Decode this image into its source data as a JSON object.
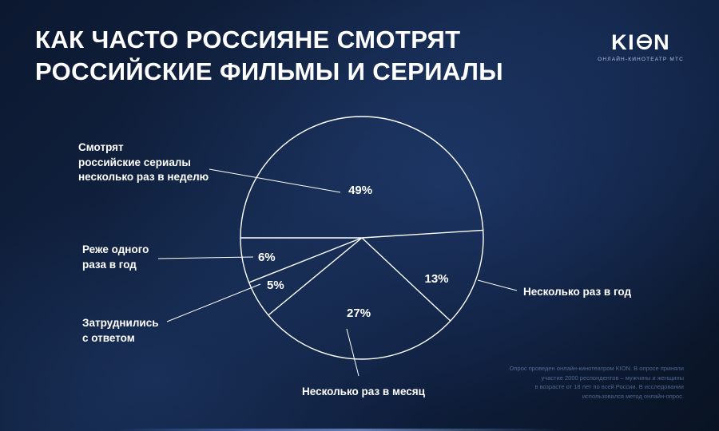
{
  "title": "КАК ЧАСТО РОССИЯНЕ СМОТРЯТ\nРОССИЙСКИЕ ФИЛЬМЫ И СЕРИАЛЫ",
  "logo": {
    "brand_full": "KION",
    "brand_k": "KI",
    "brand_n": "N",
    "subtitle": "ОНЛАЙН-КИНОТЕАТР МТС"
  },
  "chart_data": {
    "type": "pie",
    "title": "Как часто россияне смотрят российские фильмы и сериалы",
    "unit": "%",
    "style": "outline-only white strokes on dark background, labels outside with leader lines",
    "start_boundary_deg": 180,
    "direction": "clockwise",
    "slices": [
      {
        "label": "Смотрят российские сериалы несколько раз в неделю",
        "value": 49
      },
      {
        "label": "Несколько раз в год",
        "value": 13
      },
      {
        "label": "Несколько раз в месяц",
        "value": 27
      },
      {
        "label": "Затруднились с ответом",
        "value": 5
      },
      {
        "label": "Реже одного раза в год",
        "value": 6
      }
    ]
  },
  "callouts": [
    {
      "id": "weekly",
      "text": "Смотрят\nроссийские сериалы\nнесколько раз в неделю"
    },
    {
      "id": "less-than-yearly",
      "text": "Реже одного\nраза в год"
    },
    {
      "id": "undecided",
      "text": "Затруднились\nс ответом"
    },
    {
      "id": "monthly",
      "text": "Несколько раз в месяц"
    },
    {
      "id": "yearly",
      "text": "Несколько раз в год"
    }
  ],
  "footnote": "Опрос проведен онлайн-кинотеатром KION. В опросе приняли\nучастие 2000 респондентов – мужчины и женщины\nв возрасте от 18 лет по всей России. В исследовании\nиспользовался метод онлайн-опрос."
}
